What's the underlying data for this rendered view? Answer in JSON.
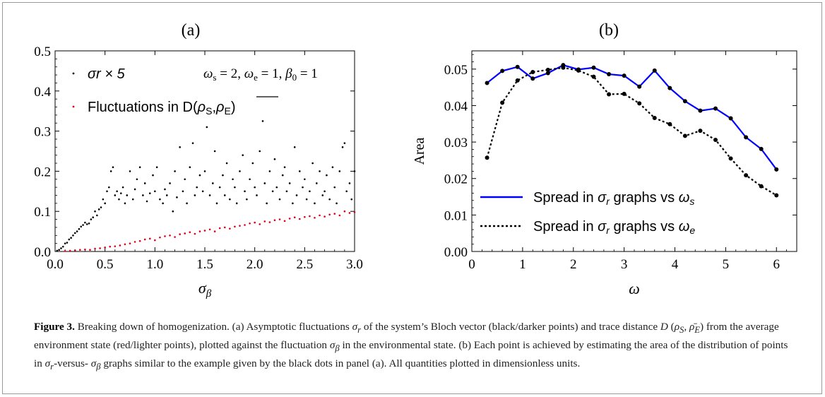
{
  "figure": {
    "caption": {
      "label": "Figure 3.",
      "parts": [
        " Breaking down of homogenization. (a) Asymptotic fluctuations ",
        "σ",
        "r",
        " of the system’s Bloch vector (black/darker points) and trace distance ",
        "D",
        " (",
        "ρ",
        "S",
        ",  ",
        "ρ̄",
        "E",
        ") from the average environment state (red/lighter points), plotted against the fluctuation ",
        "σ",
        "β",
        " in the environmental state. (b) Each point is achieved by estimating the area of the distribution of points in ",
        "σ",
        "r",
        "-versus- ",
        "σ",
        "β",
        " graphs similar to the example given by the black dots in panel (a). All quantities plotted in dimensionless units."
      ]
    }
  },
  "chart_data": [
    {
      "type": "scatter",
      "title": "(a)",
      "xlabel": "σβ",
      "ylabel": "",
      "xlim": [
        0,
        3.0
      ],
      "ylim": [
        0,
        0.5
      ],
      "xticks": [
        "0.0",
        "0.5",
        "1.0",
        "1.5",
        "2.0",
        "2.5",
        "3.0"
      ],
      "yticks": [
        "0.0",
        "0.1",
        "0.2",
        "0.3",
        "0.4",
        "0.5"
      ],
      "annotation": "ωs = 2, ωe = 1, β0 = 1",
      "legend_position": "top-left",
      "colors": {
        "black": "#000000",
        "red": "#e0001b"
      },
      "series": [
        {
          "name": "σr × 5",
          "legend_label": "σr × 5",
          "color": "#000000",
          "points": [
            [
              0.02,
              0.002
            ],
            [
              0.04,
              0.004
            ],
            [
              0.06,
              0.008
            ],
            [
              0.08,
              0.012
            ],
            [
              0.1,
              0.02
            ],
            [
              0.12,
              0.022
            ],
            [
              0.14,
              0.03
            ],
            [
              0.16,
              0.034
            ],
            [
              0.18,
              0.04
            ],
            [
              0.2,
              0.046
            ],
            [
              0.22,
              0.05
            ],
            [
              0.24,
              0.056
            ],
            [
              0.26,
              0.062
            ],
            [
              0.28,
              0.066
            ],
            [
              0.3,
              0.072
            ],
            [
              0.32,
              0.068
            ],
            [
              0.34,
              0.07
            ],
            [
              0.36,
              0.08
            ],
            [
              0.38,
              0.085
            ],
            [
              0.4,
              0.1
            ],
            [
              0.42,
              0.09
            ],
            [
              0.44,
              0.105
            ],
            [
              0.46,
              0.11
            ],
            [
              0.48,
              0.13
            ],
            [
              0.5,
              0.12
            ],
            [
              0.52,
              0.15
            ],
            [
              0.54,
              0.16
            ],
            [
              0.56,
              0.2
            ],
            [
              0.58,
              0.21
            ],
            [
              0.6,
              0.14
            ],
            [
              0.62,
              0.15
            ],
            [
              0.64,
              0.13
            ],
            [
              0.66,
              0.145
            ],
            [
              0.68,
              0.16
            ],
            [
              0.7,
              0.12
            ],
            [
              0.72,
              0.14
            ],
            [
              0.75,
              0.2
            ],
            [
              0.78,
              0.13
            ],
            [
              0.8,
              0.155
            ],
            [
              0.82,
              0.18
            ],
            [
              0.85,
              0.21
            ],
            [
              0.88,
              0.14
            ],
            [
              0.9,
              0.17
            ],
            [
              0.92,
              0.125
            ],
            [
              0.95,
              0.145
            ],
            [
              0.98,
              0.19
            ],
            [
              1.0,
              0.15
            ],
            [
              1.02,
              0.21
            ],
            [
              1.05,
              0.13
            ],
            [
              1.08,
              0.12
            ],
            [
              1.1,
              0.155
            ],
            [
              1.12,
              0.14
            ],
            [
              1.15,
              0.17
            ],
            [
              1.18,
              0.1
            ],
            [
              1.2,
              0.2
            ],
            [
              1.22,
              0.135
            ],
            [
              1.25,
              0.26
            ],
            [
              1.28,
              0.15
            ],
            [
              1.3,
              0.18
            ],
            [
              1.32,
              0.12
            ],
            [
              1.35,
              0.21
            ],
            [
              1.38,
              0.27
            ],
            [
              1.4,
              0.14
            ],
            [
              1.42,
              0.16
            ],
            [
              1.45,
              0.19
            ],
            [
              1.48,
              0.15
            ],
            [
              1.5,
              0.2
            ],
            [
              1.52,
              0.31
            ],
            [
              1.55,
              0.14
            ],
            [
              1.58,
              0.17
            ],
            [
              1.6,
              0.25
            ],
            [
              1.62,
              0.12
            ],
            [
              1.65,
              0.16
            ],
            [
              1.68,
              0.19
            ],
            [
              1.7,
              0.14
            ],
            [
              1.72,
              0.22
            ],
            [
              1.75,
              0.13
            ],
            [
              1.78,
              0.18
            ],
            [
              1.8,
              0.16
            ],
            [
              1.82,
              0.12
            ],
            [
              1.85,
              0.2
            ],
            [
              1.88,
              0.24
            ],
            [
              1.9,
              0.15
            ],
            [
              1.92,
              0.13
            ],
            [
              1.95,
              0.18
            ],
            [
              1.98,
              0.22
            ],
            [
              2.0,
              0.16
            ],
            [
              2.02,
              0.14
            ],
            [
              2.05,
              0.25
            ],
            [
              2.08,
              0.325
            ],
            [
              2.1,
              0.17
            ],
            [
              2.12,
              0.12
            ],
            [
              2.15,
              0.2
            ],
            [
              2.18,
              0.15
            ],
            [
              2.2,
              0.23
            ],
            [
              2.22,
              0.16
            ],
            [
              2.25,
              0.13
            ],
            [
              2.28,
              0.19
            ],
            [
              2.3,
              0.21
            ],
            [
              2.32,
              0.15
            ],
            [
              2.35,
              0.17
            ],
            [
              2.38,
              0.12
            ],
            [
              2.4,
              0.26
            ],
            [
              2.42,
              0.14
            ],
            [
              2.45,
              0.2
            ],
            [
              2.48,
              0.16
            ],
            [
              2.5,
              0.18
            ],
            [
              2.52,
              0.13
            ],
            [
              2.55,
              0.15
            ],
            [
              2.58,
              0.22
            ],
            [
              2.6,
              0.12
            ],
            [
              2.62,
              0.17
            ],
            [
              2.65,
              0.2
            ],
            [
              2.68,
              0.14
            ],
            [
              2.7,
              0.15
            ],
            [
              2.72,
              0.19
            ],
            [
              2.75,
              0.13
            ],
            [
              2.78,
              0.21
            ],
            [
              2.8,
              0.16
            ],
            [
              2.82,
              0.12
            ],
            [
              2.85,
              0.2
            ],
            [
              2.88,
              0.26
            ],
            [
              2.9,
              0.27
            ],
            [
              2.92,
              0.15
            ],
            [
              2.95,
              0.17
            ],
            [
              2.97,
              0.13
            ],
            [
              3.0,
              0.2
            ]
          ]
        },
        {
          "name": "Fluctuations in D(ρS, ρE)",
          "legend_label": "Fluctuations in D(",
          "legend_rho_s": "ρ",
          "legend_sub_s": "S",
          "legend_rho_e": "ρ",
          "legend_sub_e": "E",
          "color": "#e0001b",
          "points": [
            [
              0.1,
              0.001
            ],
            [
              0.15,
              0.002
            ],
            [
              0.2,
              0.003
            ],
            [
              0.25,
              0.004
            ],
            [
              0.3,
              0.005
            ],
            [
              0.35,
              0.004
            ],
            [
              0.4,
              0.007
            ],
            [
              0.45,
              0.008
            ],
            [
              0.5,
              0.01
            ],
            [
              0.55,
              0.012
            ],
            [
              0.6,
              0.013
            ],
            [
              0.65,
              0.015
            ],
            [
              0.7,
              0.018
            ],
            [
              0.75,
              0.02
            ],
            [
              0.8,
              0.024
            ],
            [
              0.85,
              0.026
            ],
            [
              0.9,
              0.03
            ],
            [
              0.95,
              0.032
            ],
            [
              1.0,
              0.028
            ],
            [
              1.05,
              0.035
            ],
            [
              1.1,
              0.038
            ],
            [
              1.15,
              0.04
            ],
            [
              1.2,
              0.036
            ],
            [
              1.25,
              0.043
            ],
            [
              1.3,
              0.045
            ],
            [
              1.35,
              0.048
            ],
            [
              1.4,
              0.044
            ],
            [
              1.45,
              0.05
            ],
            [
              1.5,
              0.052
            ],
            [
              1.55,
              0.055
            ],
            [
              1.6,
              0.05
            ],
            [
              1.65,
              0.058
            ],
            [
              1.7,
              0.06
            ],
            [
              1.75,
              0.057
            ],
            [
              1.8,
              0.062
            ],
            [
              1.85,
              0.064
            ],
            [
              1.9,
              0.066
            ],
            [
              1.95,
              0.07
            ],
            [
              2.0,
              0.072
            ],
            [
              2.05,
              0.068
            ],
            [
              2.1,
              0.075
            ],
            [
              2.15,
              0.073
            ],
            [
              2.2,
              0.078
            ],
            [
              2.25,
              0.08
            ],
            [
              2.3,
              0.076
            ],
            [
              2.35,
              0.082
            ],
            [
              2.4,
              0.085
            ],
            [
              2.45,
              0.081
            ],
            [
              2.5,
              0.086
            ],
            [
              2.55,
              0.088
            ],
            [
              2.6,
              0.084
            ],
            [
              2.65,
              0.09
            ],
            [
              2.7,
              0.087
            ],
            [
              2.75,
              0.092
            ],
            [
              2.8,
              0.094
            ],
            [
              2.85,
              0.09
            ],
            [
              2.9,
              0.1
            ],
            [
              2.95,
              0.096
            ],
            [
              3.0,
              0.098
            ]
          ]
        }
      ]
    },
    {
      "type": "line",
      "title": "(b)",
      "xlabel": "ω",
      "ylabel": "Area",
      "xlim": [
        0,
        6.4
      ],
      "ylim": [
        0,
        0.055
      ],
      "xticks": [
        "0",
        "1",
        "2",
        "3",
        "4",
        "5",
        "6"
      ],
      "yticks": [
        "0.00",
        "0.01",
        "0.02",
        "0.03",
        "0.04",
        "0.05"
      ],
      "legend_position": "bottom-left",
      "colors": {
        "blue": "#0000ff",
        "black": "#000000"
      },
      "series": [
        {
          "name": "Spread in σr graphs vs ωs",
          "color": "#0000ff",
          "x": [
            0.3,
            0.6,
            0.9,
            1.2,
            1.5,
            1.8,
            2.1,
            2.4,
            2.7,
            3.0,
            3.3,
            3.6,
            3.9,
            4.2,
            4.5,
            4.8,
            5.1,
            5.4,
            5.7,
            6.0
          ],
          "y": [
            0.0462,
            0.0495,
            0.0506,
            0.0474,
            0.0489,
            0.0511,
            0.0499,
            0.0504,
            0.0486,
            0.0482,
            0.0452,
            0.0496,
            0.0448,
            0.0412,
            0.0386,
            0.0392,
            0.0365,
            0.0313,
            0.0281,
            0.0225
          ]
        },
        {
          "name": "Spread in σr graphs vs ωe",
          "color": "#000000",
          "x": [
            0.3,
            0.6,
            0.9,
            1.2,
            1.5,
            1.8,
            2.1,
            2.4,
            2.7,
            3.0,
            3.3,
            3.6,
            3.9,
            4.2,
            4.5,
            4.8,
            5.1,
            5.4,
            5.7,
            6.0
          ],
          "y": [
            0.0257,
            0.0408,
            0.0469,
            0.0492,
            0.0498,
            0.0504,
            0.0496,
            0.0479,
            0.0431,
            0.0432,
            0.0406,
            0.0366,
            0.0349,
            0.0317,
            0.0331,
            0.0306,
            0.0255,
            0.0209,
            0.0179,
            0.0154
          ]
        }
      ]
    }
  ]
}
